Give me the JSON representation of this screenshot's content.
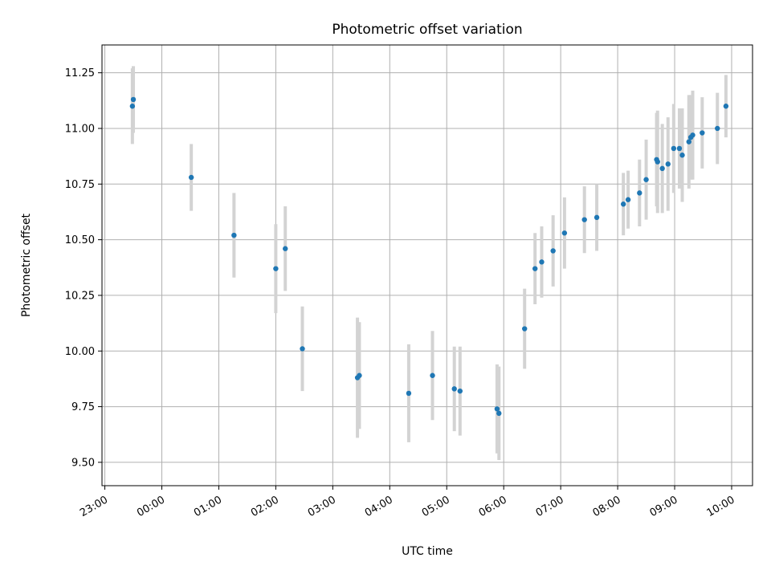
{
  "chart_data": {
    "type": "scatter",
    "title": "Photometric offset variation",
    "xlabel": "UTC time",
    "ylabel": "Photometric offset",
    "grid": true,
    "x_axis": {
      "type": "time",
      "start": "23:00",
      "end": "10:00",
      "ticks": [
        "23:00",
        "00:00",
        "01:00",
        "02:00",
        "03:00",
        "04:00",
        "05:00",
        "06:00",
        "07:00",
        "08:00",
        "09:00",
        "10:00"
      ],
      "limits": [
        "22:57",
        "10:22"
      ]
    },
    "y_axis": {
      "ticks": [
        "9.50",
        "9.75",
        "10.00",
        "10.25",
        "10.50",
        "10.75",
        "11.00",
        "11.25"
      ],
      "limits": [
        9.395,
        11.375
      ]
    },
    "colors": {
      "points": "#1f77b4",
      "errorbars": "#d3d3d3",
      "grid": "#b0b0b0"
    },
    "points": [
      {
        "x": "23:29",
        "y": 11.1,
        "err": 0.17
      },
      {
        "x": "23:30",
        "y": 11.13,
        "err": 0.15
      },
      {
        "x": "00:31",
        "y": 10.78,
        "err": 0.15
      },
      {
        "x": "01:16",
        "y": 10.52,
        "err": 0.19
      },
      {
        "x": "02:00",
        "y": 10.37,
        "err": 0.2
      },
      {
        "x": "02:10",
        "y": 10.46,
        "err": 0.19
      },
      {
        "x": "02:28",
        "y": 10.01,
        "err": 0.19
      },
      {
        "x": "03:26",
        "y": 9.88,
        "err": 0.27
      },
      {
        "x": "03:28",
        "y": 9.89,
        "err": 0.24
      },
      {
        "x": "04:20",
        "y": 9.81,
        "err": 0.22
      },
      {
        "x": "04:45",
        "y": 9.89,
        "err": 0.2
      },
      {
        "x": "05:08",
        "y": 9.83,
        "err": 0.19
      },
      {
        "x": "05:14",
        "y": 9.82,
        "err": 0.2
      },
      {
        "x": "05:53",
        "y": 9.74,
        "err": 0.2
      },
      {
        "x": "05:55",
        "y": 9.72,
        "err": 0.21
      },
      {
        "x": "06:22",
        "y": 10.1,
        "err": 0.18
      },
      {
        "x": "06:33",
        "y": 10.37,
        "err": 0.16
      },
      {
        "x": "06:40",
        "y": 10.4,
        "err": 0.16
      },
      {
        "x": "06:52",
        "y": 10.45,
        "err": 0.16
      },
      {
        "x": "07:04",
        "y": 10.53,
        "err": 0.16
      },
      {
        "x": "07:25",
        "y": 10.59,
        "err": 0.15
      },
      {
        "x": "07:38",
        "y": 10.6,
        "err": 0.15
      },
      {
        "x": "08:06",
        "y": 10.66,
        "err": 0.14
      },
      {
        "x": "08:11",
        "y": 10.68,
        "err": 0.13
      },
      {
        "x": "08:23",
        "y": 10.71,
        "err": 0.15
      },
      {
        "x": "08:30",
        "y": 10.77,
        "err": 0.18
      },
      {
        "x": "08:41",
        "y": 10.86,
        "err": 0.21
      },
      {
        "x": "08:42",
        "y": 10.85,
        "err": 0.23
      },
      {
        "x": "08:47",
        "y": 10.82,
        "err": 0.2
      },
      {
        "x": "08:53",
        "y": 10.84,
        "err": 0.21
      },
      {
        "x": "08:59",
        "y": 10.91,
        "err": 0.2
      },
      {
        "x": "09:05",
        "y": 10.91,
        "err": 0.18
      },
      {
        "x": "09:08",
        "y": 10.88,
        "err": 0.21
      },
      {
        "x": "09:15",
        "y": 10.94,
        "err": 0.21
      },
      {
        "x": "09:17",
        "y": 10.96,
        "err": 0.19
      },
      {
        "x": "09:19",
        "y": 10.97,
        "err": 0.2
      },
      {
        "x": "09:29",
        "y": 10.98,
        "err": 0.16
      },
      {
        "x": "09:45",
        "y": 11.0,
        "err": 0.16
      },
      {
        "x": "09:54",
        "y": 11.1,
        "err": 0.14
      }
    ]
  }
}
